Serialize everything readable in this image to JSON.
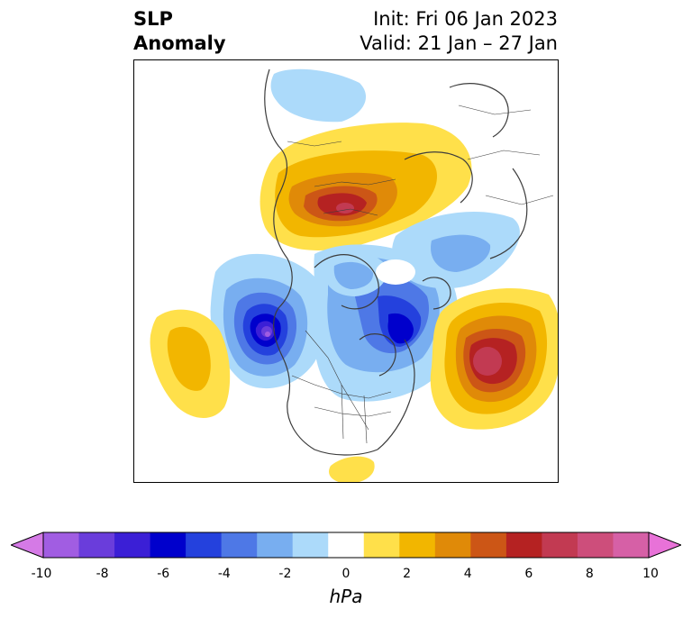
{
  "title": {
    "left_line1": "SLP",
    "left_line2": "Anomaly",
    "right_line1": "Init: Fri 06 Jan 2023",
    "right_line2": "Valid: 21 Jan – 27 Jan"
  },
  "colorbar": {
    "unit": "hPa",
    "tick_labels": [
      "-10",
      "-8",
      "-6",
      "-4",
      "-2",
      "0",
      "2",
      "4",
      "6",
      "8",
      "10"
    ],
    "levels": [
      -10,
      -9,
      -8,
      -7,
      -6,
      -5,
      -4,
      -3,
      -2,
      -1,
      1,
      2,
      3,
      4,
      5,
      6,
      7,
      8,
      9,
      10
    ],
    "colors": [
      "#d57ae6",
      "#a15de2",
      "#6a3ddb",
      "#3b1fd6",
      "#0000cc",
      "#2441dd",
      "#4e78e6",
      "#78aef0",
      "#acdafa",
      "#ffffff",
      "#ffe04a",
      "#f2b600",
      "#e08a08",
      "#cc5616",
      "#b52222",
      "#c23a52",
      "#cd4e7b",
      "#d660a6",
      "#e872d8"
    ]
  },
  "map": {
    "projection": "polar stereographic, Northern Hemisphere",
    "features": [
      {
        "name": "siberia-high-anomaly",
        "sign": "positive",
        "peak_hpa": 7
      },
      {
        "name": "north-atlantic-high-anomaly",
        "sign": "positive",
        "peak_hpa": 7
      },
      {
        "name": "north-pacific-high-anomaly",
        "sign": "positive",
        "peak_hpa": 3
      },
      {
        "name": "gulf-of-mexico-high-anomaly",
        "sign": "positive",
        "peak_hpa": 2
      },
      {
        "name": "gulf-of-alaska-low-anomaly",
        "sign": "negative",
        "peak_hpa": -9
      },
      {
        "name": "baffin-low-anomaly",
        "sign": "negative",
        "peak_hpa": -6
      },
      {
        "name": "arctic-europe-low-anomaly",
        "sign": "negative",
        "peak_hpa": -3
      },
      {
        "name": "scandinavia-low-anomaly",
        "sign": "negative",
        "peak_hpa": -2
      }
    ]
  }
}
